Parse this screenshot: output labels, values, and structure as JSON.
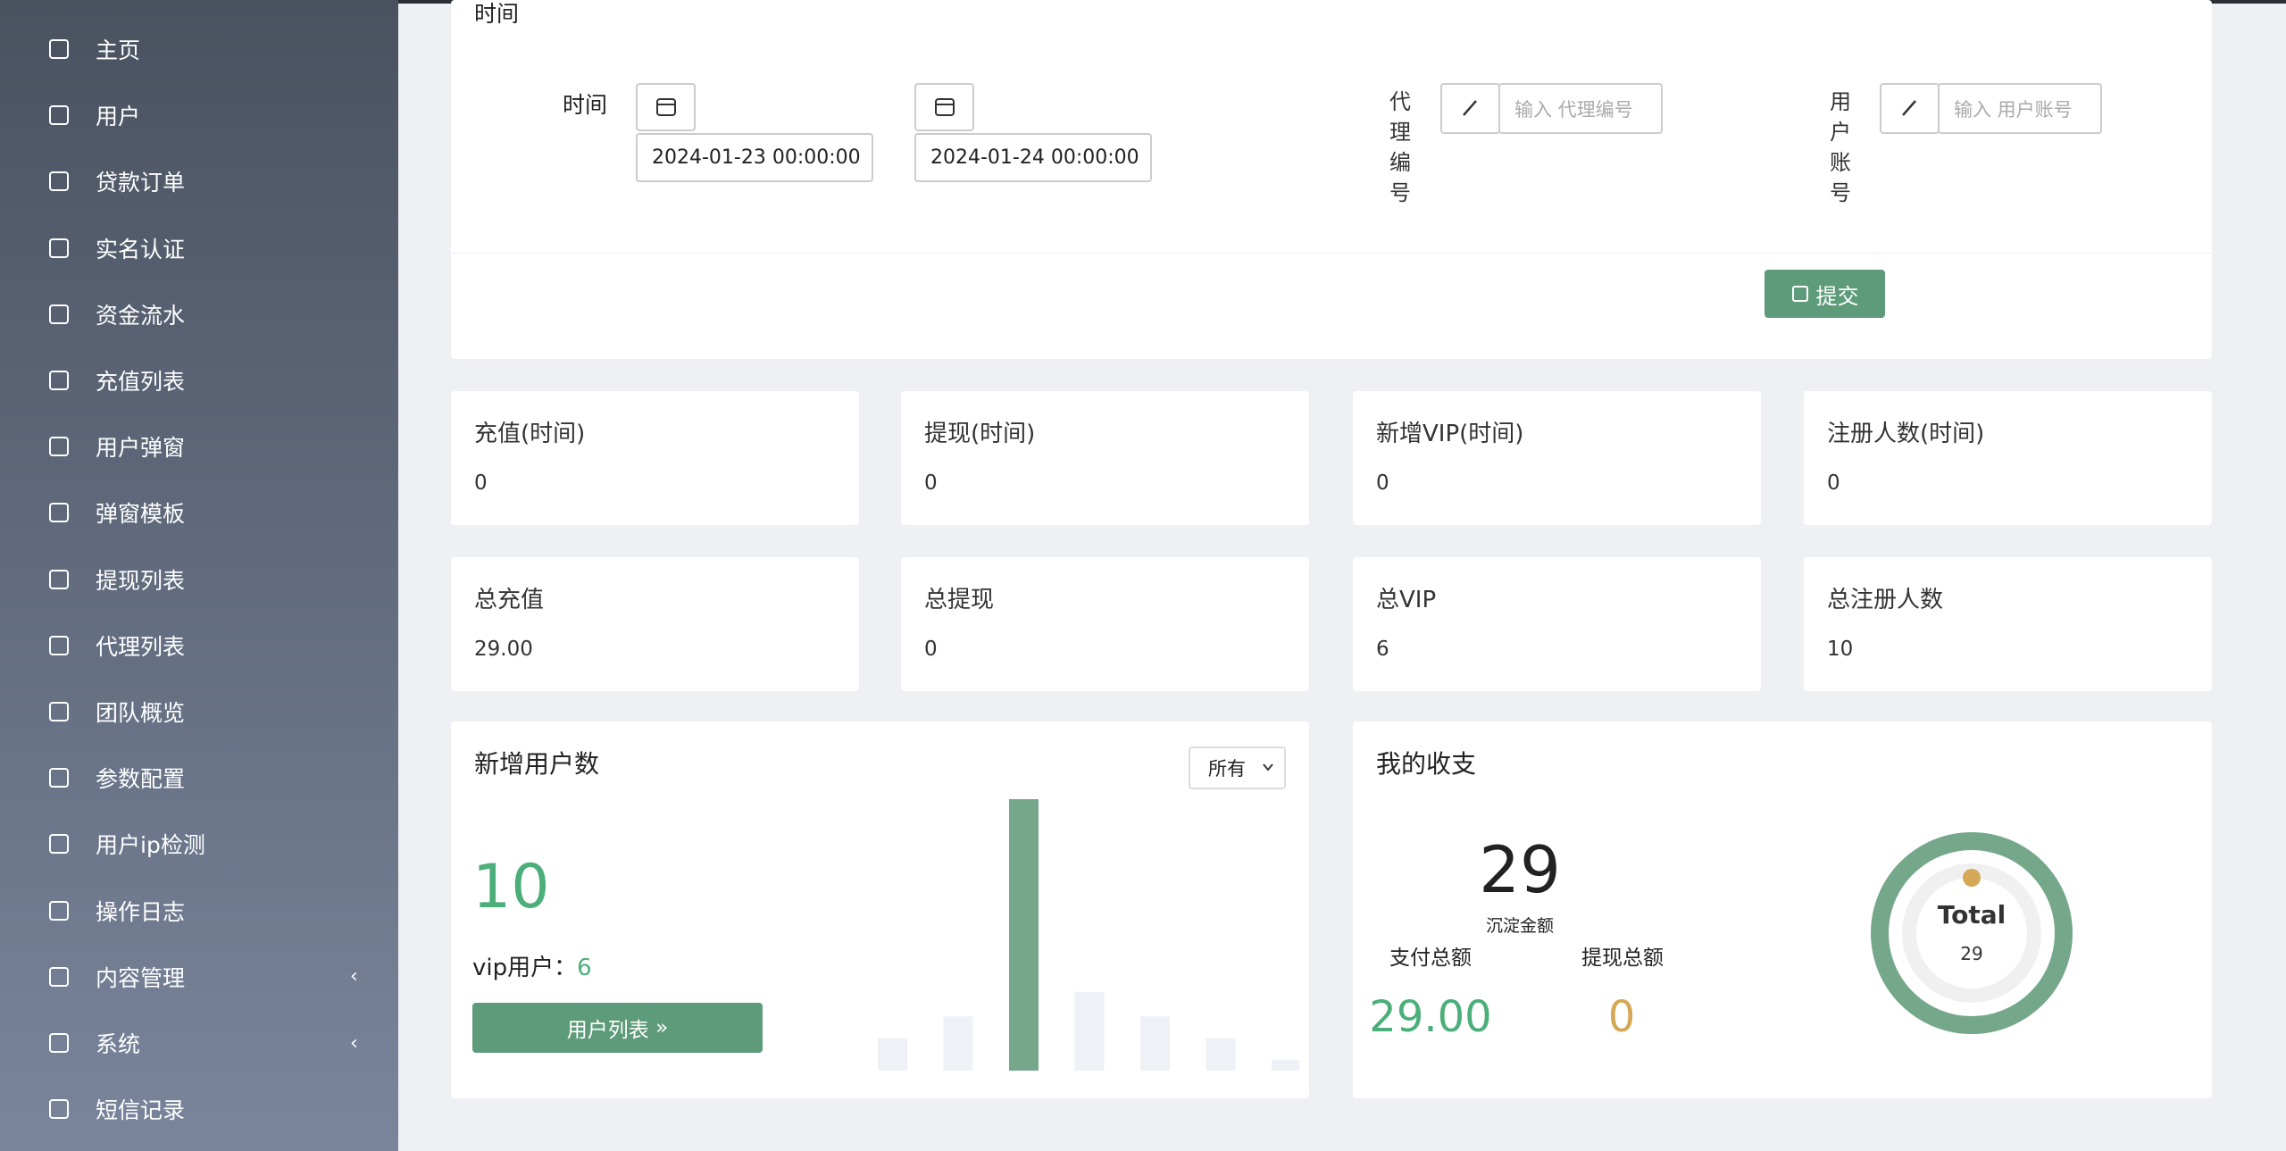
{
  "sidebar": {
    "menu": [
      {
        "label": "主页"
      },
      {
        "label": "用户"
      },
      {
        "label": "贷款订单"
      },
      {
        "label": "实名认证"
      },
      {
        "label": "资金流水"
      },
      {
        "label": "充值列表"
      },
      {
        "label": "用户弹窗"
      },
      {
        "label": "弹窗模板"
      },
      {
        "label": "提现列表"
      },
      {
        "label": "代理列表"
      },
      {
        "label": "团队概览"
      },
      {
        "label": "参数配置"
      },
      {
        "label": "用户ip检测"
      },
      {
        "label": "操作日志"
      },
      {
        "label": "内容管理",
        "submenu": true
      },
      {
        "label": "系统",
        "submenu": true
      },
      {
        "label": "短信记录"
      }
    ]
  },
  "form": {
    "top_label": "时间",
    "time_label": "时间",
    "start": "2024-01-23 00:00:00",
    "end": "2024-01-24 00:00:00",
    "agent_label": "代理编号",
    "agent_placeholder": "输入 代理编号",
    "user_label": "用户账号",
    "user_placeholder": "输入 用户账号",
    "submit": "提交"
  },
  "stats": [
    {
      "title": "充值(时间)",
      "value": "0"
    },
    {
      "title": "提现(时间)",
      "value": "0"
    },
    {
      "title": "新增VIP(时间)",
      "value": "0"
    },
    {
      "title": "注册人数(时间)",
      "value": "0"
    },
    {
      "title": "总充值",
      "value": "29.00"
    },
    {
      "title": "总提现",
      "value": "0"
    },
    {
      "title": "总VIP",
      "value": "6"
    },
    {
      "title": "总注册人数",
      "value": "10"
    }
  ],
  "new_users": {
    "title": "新增用户数",
    "filter": "所有",
    "count": "10",
    "vip_label": "vip用户：",
    "vip": "6",
    "button": "用户列表",
    "chart_data": {
      "type": "bar",
      "values": [
        12,
        20,
        100,
        29,
        20,
        12,
        4
      ],
      "colors": [
        "#eef1f6",
        "#eef1f6",
        "#75a88a",
        "#eef1f6",
        "#eef1f6",
        "#eef1f6",
        "#eef1f6"
      ],
      "ylim": [
        0,
        100
      ]
    }
  },
  "finance": {
    "title": "我的收支",
    "balance": "29",
    "balance_label": "沉淀金额",
    "pay_label": "支付总额",
    "withdraw_label": "提现总额",
    "pay": "29.00",
    "withdraw": "0",
    "donut_label": "Total",
    "donut_value": "29"
  }
}
